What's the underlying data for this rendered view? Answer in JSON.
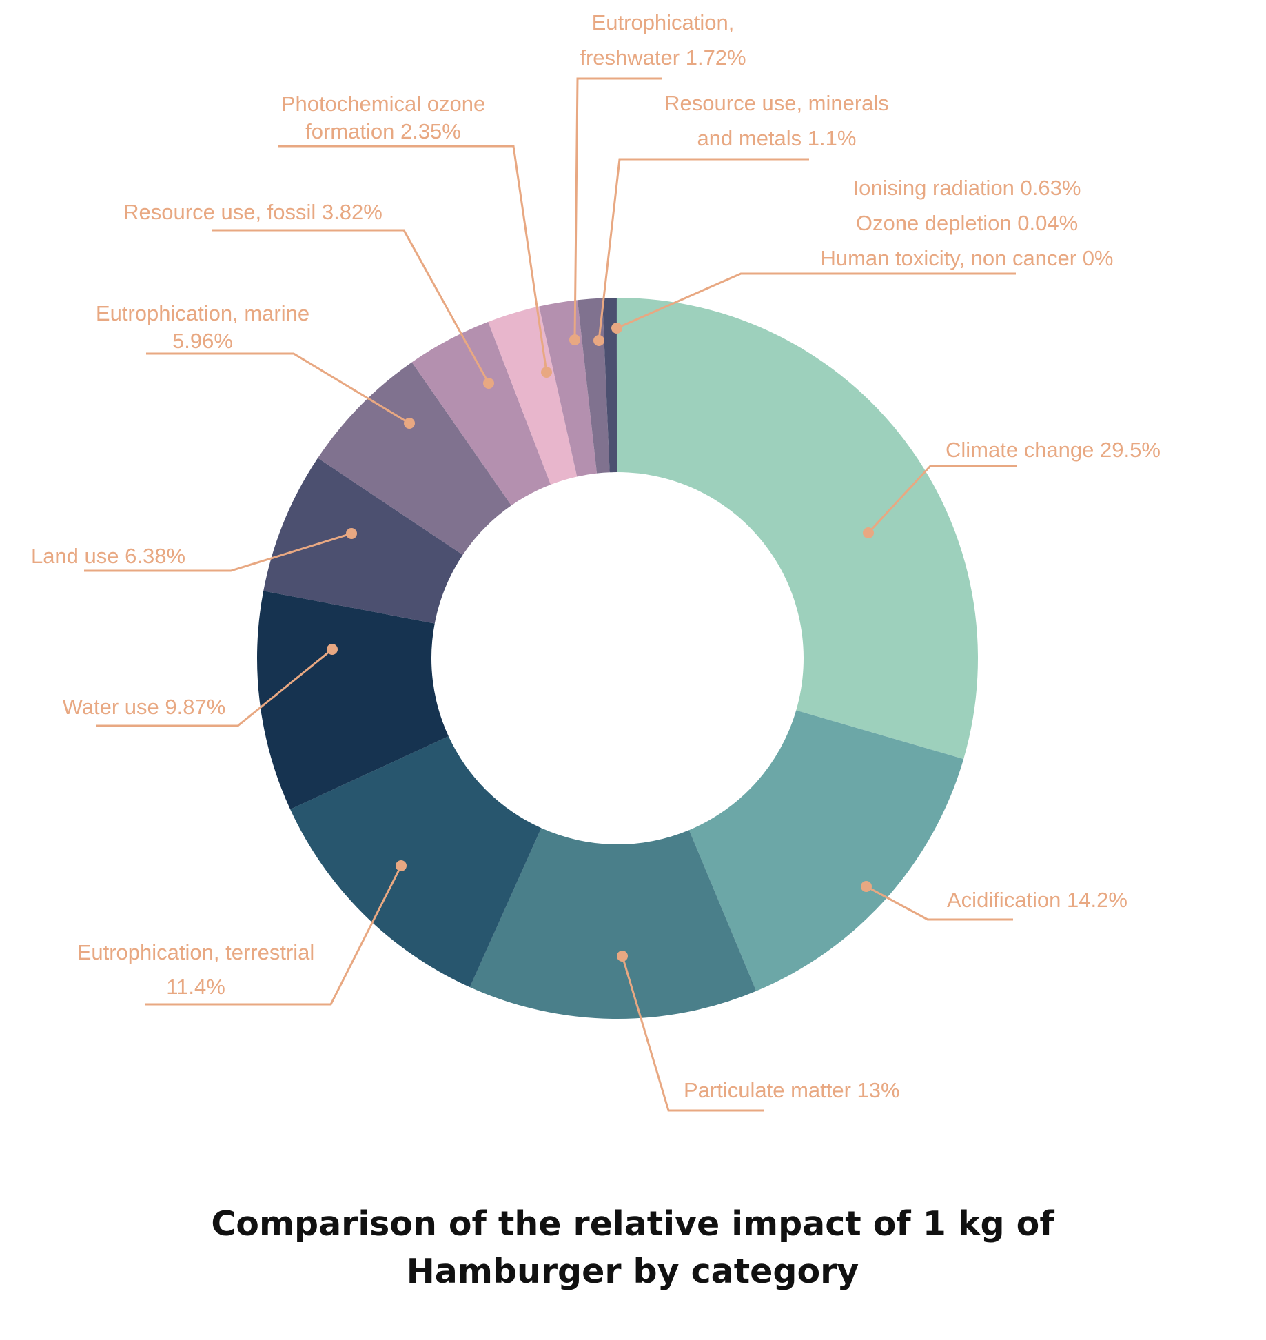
{
  "chart_data": {
    "type": "pie",
    "variant": "donut",
    "title_lines": [
      "Comparison of the relative impact of 1 kg of",
      "Hamburger by category"
    ],
    "label_color": "#E8A882",
    "leader_color": "#E8A882",
    "series": [
      {
        "name": "Climate change",
        "value": 29.5,
        "color": "#9DD0BC",
        "label_lines": [
          "Climate change 29.5%"
        ]
      },
      {
        "name": "Acidification",
        "value": 14.2,
        "color": "#6CA7A7",
        "label_lines": [
          "Acidification 14.2%"
        ]
      },
      {
        "name": "Particulate matter",
        "value": 13,
        "color": "#4A7F8A",
        "label_lines": [
          "Particulate matter 13%"
        ]
      },
      {
        "name": "Eutrophication, terrestrial",
        "value": 11.4,
        "color": "#28566E",
        "label_lines": [
          "Eutrophication, terrestrial",
          "11.4%"
        ]
      },
      {
        "name": "Water use",
        "value": 9.87,
        "color": "#163350",
        "label_lines": [
          "Water use 9.87%"
        ]
      },
      {
        "name": "Land use",
        "value": 6.38,
        "color": "#4C5070",
        "label_lines": [
          "Land use 6.38%"
        ]
      },
      {
        "name": "Eutrophication, marine",
        "value": 5.96,
        "color": "#80728F",
        "label_lines": [
          "Eutrophication, marine",
          "5.96%"
        ]
      },
      {
        "name": "Resource use, fossil",
        "value": 3.82,
        "color": "#B490AF",
        "label_lines": [
          "Resource use, fossil 3.82%"
        ]
      },
      {
        "name": "Photochemical ozone formation",
        "value": 2.35,
        "color": "#E8B6CC",
        "label_lines": [
          "Photochemical ozone",
          "formation 2.35%"
        ]
      },
      {
        "name": "Eutrophication, freshwater",
        "value": 1.72,
        "color": "#B490AF",
        "label_lines": [
          "Eutrophication,",
          "freshwater 1.72%"
        ]
      },
      {
        "name": "Resource use, minerals and metals",
        "value": 1.1,
        "color": "#80728F",
        "label_lines": [
          "Resource use, minerals",
          "and metals 1.1%"
        ]
      },
      {
        "name": "Ionising radiation",
        "value": 0.63,
        "color": "#4C5070",
        "label_lines": [
          "Ionising radiation 0.63%",
          "Ozone depletion 0.04%",
          "Human toxicity, non cancer 0%"
        ]
      },
      {
        "name": "Ozone depletion",
        "value": 0.04,
        "color": "#163350",
        "label_lines": []
      },
      {
        "name": "Human toxicity, non cancer",
        "value": 0,
        "color": "#28566E",
        "label_lines": []
      }
    ]
  }
}
